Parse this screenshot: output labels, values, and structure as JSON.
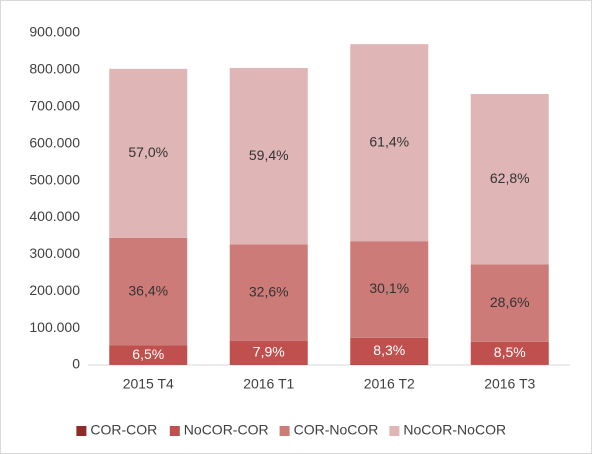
{
  "chart_data": {
    "type": "stacked-bar",
    "categories": [
      "2015 T4",
      "2016 T1",
      "2016 T2",
      "2016 T3"
    ],
    "series": [
      {
        "name": "COR-COR",
        "color": "#8e2b29",
        "values": [
          800,
          1000,
          1700,
          700
        ]
      },
      {
        "name": "NoCOR-COR",
        "color": "#c0504d",
        "values": [
          52000,
          64000,
          72000,
          62000
        ],
        "shares": [
          6.5,
          7.9,
          8.3,
          8.5
        ],
        "share_labels": [
          "6,5%",
          "7,9%",
          "8,3%",
          "8,5%"
        ],
        "label_color": "#ffffff"
      },
      {
        "name": "COR-NoCOR",
        "color": "#cd7b78",
        "values": [
          292000,
          262000,
          262000,
          210000
        ],
        "shares": [
          36.4,
          32.6,
          30.1,
          28.6
        ],
        "share_labels": [
          "36,4%",
          "32,6%",
          "30,1%",
          "28,6%"
        ],
        "label_color": "#333333"
      },
      {
        "name": "NoCOR-NoCOR",
        "color": "#dfb5b5",
        "values": [
          458000,
          478000,
          534000,
          462000
        ],
        "shares": [
          57.0,
          59.4,
          61.4,
          62.8
        ],
        "share_labels": [
          "57,0%",
          "59,4%",
          "61,4%",
          "62,8%"
        ],
        "label_color": "#333333"
      }
    ],
    "ylim": [
      0,
      900000
    ],
    "yticks": [
      0,
      {
        "value": 100000,
        "label": "100.000"
      },
      {
        "value": 200000,
        "label": "200.000"
      },
      {
        "value": 300000,
        "label": "300.000"
      },
      {
        "value": 400000,
        "label": "400.000"
      },
      {
        "value": 500000,
        "label": "500.000"
      },
      {
        "value": 600000,
        "label": "600.000"
      },
      {
        "value": 700000,
        "label": "700.000"
      },
      {
        "value": 800000,
        "label": "800.000"
      },
      {
        "value": 900000,
        "label": "900.000"
      }
    ],
    "grid": false,
    "legend": "bottom"
  }
}
